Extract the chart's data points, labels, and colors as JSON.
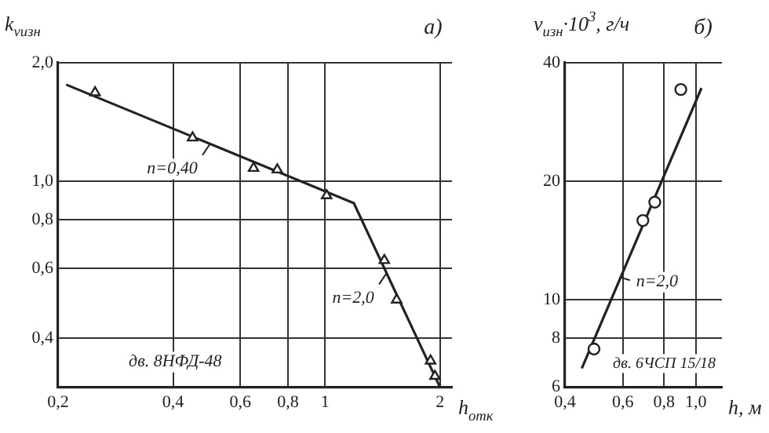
{
  "chart_data": [
    {
      "type": "scatter",
      "title": "а)",
      "xlabel": "h$_{отк}$",
      "ylabel": "k$_{vизн}$",
      "log": "xy",
      "grid": true,
      "legend": false,
      "xlim": [
        0.2,
        2.15
      ],
      "ylim": [
        0.3,
        2.0
      ],
      "xticks": [
        {
          "value": 0.2,
          "label": "0,2"
        },
        {
          "value": 0.4,
          "label": "0,4"
        },
        {
          "value": 0.6,
          "label": "0,6"
        },
        {
          "value": 0.8,
          "label": "0,8"
        },
        1,
        2
      ],
      "yticks": [
        {
          "value": 0.4,
          "label": "0,4"
        },
        {
          "value": 0.6,
          "label": "0,6"
        },
        {
          "value": 0.8,
          "label": "0,8"
        },
        {
          "value": 1.0,
          "label": "1,0"
        },
        {
          "value": 2.0,
          "label": "2,0"
        }
      ],
      "series": [
        {
          "type": "scatter",
          "marker": "triangle",
          "color": "#222222",
          "x": [
            0.25,
            0.45,
            0.65,
            0.75,
            1.01,
            1.43,
            1.54,
            1.89,
            1.94
          ],
          "values": [
            1.68,
            1.29,
            1.08,
            1.07,
            0.92,
            0.63,
            0.5,
            0.35,
            0.32
          ]
        },
        {
          "type": "line",
          "marker": "none",
          "color": "#222222",
          "x": [
            0.21,
            1.19,
            2.0
          ],
          "values": [
            1.76,
            0.88,
            0.3
          ]
        }
      ],
      "annotations": [
        {
          "text": "n=0,40",
          "x": 0.5,
          "y": 1.245
        },
        {
          "text": "n=2,0",
          "x": 1.45,
          "y": 0.585
        },
        "дв. 8НФД-48"
      ]
    },
    {
      "type": "scatter",
      "title": "б)",
      "xlabel": "h, м",
      "ylabel": "v$_{изн}$·10$^{3}$, г/ч",
      "log": "xy",
      "grid": true,
      "legend": false,
      "xlim": [
        0.4,
        1.2
      ],
      "ylim": [
        6,
        40
      ],
      "xticks": [
        {
          "value": 0.4,
          "label": "0,4"
        },
        {
          "value": 0.6,
          "label": "0,6"
        },
        {
          "value": 0.8,
          "label": "0,8"
        },
        {
          "value": 1.0,
          "label": "1,0"
        }
      ],
      "yticks": [
        6,
        8,
        10,
        20,
        40
      ],
      "series": [
        {
          "type": "scatter",
          "marker": "circle",
          "color": "#222222",
          "x": [
            0.49,
            0.69,
            0.75,
            0.9
          ],
          "values": [
            7.5,
            15.9,
            17.7,
            34.2
          ]
        },
        {
          "type": "line",
          "marker": "none",
          "color": "#222222",
          "x": [
            0.45,
            1.04
          ],
          "values": [
            6.7,
            34.5
          ]
        }
      ],
      "annotations": [
        {
          "text": "n=2,0",
          "x": 0.59,
          "y": 11.4
        },
        "дв. 6ЧСП 15/18"
      ]
    }
  ]
}
